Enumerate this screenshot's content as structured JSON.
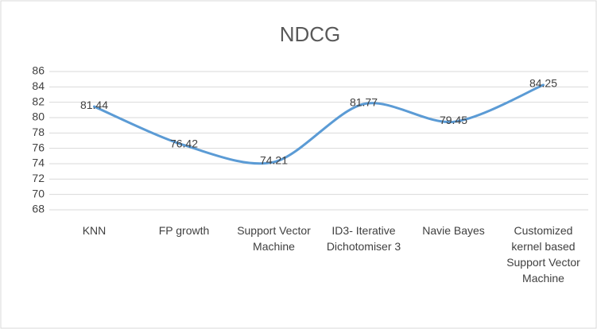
{
  "chart_data": {
    "type": "line",
    "title": "NDCG",
    "categories": [
      "KNN",
      "FP growth",
      "Support Vector Machine",
      "ID3- Iterative Dichotomiser 3",
      "Navie Bayes",
      "Customized kernel based Support Vector Machine"
    ],
    "series": [
      {
        "name": "NDCG",
        "color": "#5b9bd5",
        "values": [
          81.44,
          76.42,
          74.21,
          81.77,
          79.45,
          84.25
        ]
      }
    ],
    "ylim": [
      68,
      86
    ],
    "yticks": [
      68,
      70,
      72,
      74,
      76,
      78,
      80,
      82,
      84,
      86
    ],
    "grid": true
  }
}
